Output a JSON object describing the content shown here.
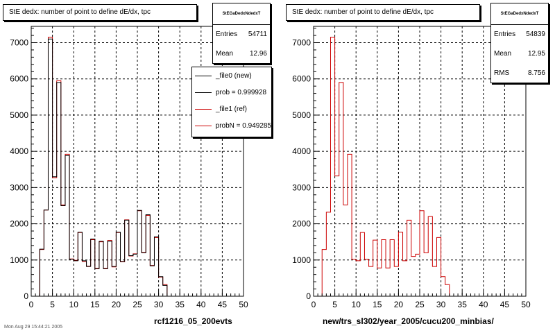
{
  "colors": {
    "new": "#000000",
    "ref": "#cc0000",
    "grid": "#000000"
  },
  "left_pad": {
    "title": "StE dedx: number of point to define dE/dx, tpc",
    "stats": {
      "name": "StEGaDedxNdedxT",
      "entries_label": "Entries",
      "entries": "54711",
      "mean_label": "Mean",
      "mean": "12.96"
    },
    "legend": [
      {
        "label": "_file0 (new)",
        "color": "#000000"
      },
      {
        "label": "prob = 0.999928",
        "color": "#000000"
      },
      {
        "label": "_file1 (ref)",
        "color": "#cc0000"
      },
      {
        "label": "probN = 0.949285",
        "color": "#cc0000"
      }
    ],
    "footer": "rcf1216_05_200evts",
    "timestamp": "Mon Aug 29 15:44:21 2005"
  },
  "right_pad": {
    "title": "StE dedx: number of point to define dE/dx, tpc",
    "stats": {
      "name": "StEGaDedxNdedxT",
      "entries_label": "Entries",
      "entries": "54839",
      "mean_label": "Mean",
      "mean": "12.95",
      "rms_label": "RMS",
      "rms": "8.756"
    },
    "footer": "new/trs_sl302/year_2005/cucu200_minbias/"
  },
  "chart_data": [
    {
      "type": "histogram",
      "title": "StE dedx: number of point to define dE/dx, tpc",
      "xlim": [
        0,
        50
      ],
      "ylim": [
        0,
        7450
      ],
      "xticks": [
        0,
        5,
        10,
        15,
        20,
        25,
        30,
        35,
        40,
        45,
        50
      ],
      "yticks": [
        0,
        1000,
        2000,
        3000,
        4000,
        5000,
        6000,
        7000
      ],
      "grid": true,
      "bin_edges_start": 0,
      "bin_width": 1,
      "series": [
        {
          "name": "_file0 (new)",
          "values": [
            0,
            0,
            1300,
            2380,
            7100,
            3300,
            5900,
            2500,
            3880,
            1020,
            980,
            1770,
            980,
            820,
            1580,
            760,
            1520,
            760,
            1520,
            820,
            1770,
            960,
            2100,
            1120,
            1160,
            2370,
            1200,
            2250,
            840,
            1640,
            540,
            300,
            0,
            0,
            0,
            0,
            0,
            0,
            0,
            0,
            0,
            0,
            0,
            0,
            0,
            0,
            0,
            0,
            0,
            0
          ]
        },
        {
          "name": "_file1 (ref)",
          "values": [
            0,
            0,
            1290,
            2380,
            7150,
            3270,
            5950,
            2520,
            3920,
            1030,
            990,
            1760,
            960,
            830,
            1560,
            770,
            1500,
            770,
            1540,
            810,
            1760,
            950,
            2110,
            1110,
            1170,
            2360,
            1210,
            2230,
            850,
            1620,
            530,
            320,
            0,
            0,
            0,
            0,
            0,
            0,
            0,
            0,
            0,
            0,
            0,
            0,
            0,
            0,
            0,
            0,
            0,
            0
          ]
        }
      ]
    },
    {
      "type": "histogram",
      "title": "StE dedx: number of point to define dE/dx, tpc",
      "xlim": [
        0,
        50
      ],
      "ylim": [
        0,
        7450
      ],
      "xticks": [
        0,
        5,
        10,
        15,
        20,
        25,
        30,
        35,
        40,
        45,
        50
      ],
      "yticks": [
        0,
        1000,
        2000,
        3000,
        4000,
        5000,
        6000,
        7000
      ],
      "grid": true,
      "bin_edges_start": 0,
      "bin_width": 1,
      "series": [
        {
          "name": "",
          "values": [
            0,
            0,
            1290,
            2320,
            7150,
            3320,
            5900,
            2520,
            3920,
            1020,
            980,
            1760,
            1020,
            820,
            1550,
            780,
            1560,
            780,
            1560,
            820,
            1770,
            980,
            2100,
            1100,
            1160,
            2360,
            1200,
            2200,
            820,
            1620,
            540,
            320,
            0,
            0,
            0,
            0,
            0,
            0,
            0,
            0,
            0,
            0,
            0,
            0,
            0,
            0,
            0,
            0,
            0,
            0
          ]
        }
      ]
    }
  ]
}
